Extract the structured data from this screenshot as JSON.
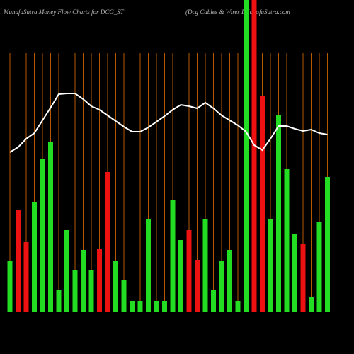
{
  "chart_data": {
    "type": "bar",
    "title": "MunafaSutra  Money Flow  Charts for DCG_ST",
    "subtitle": "(Dcg Cables & Wires Lt",
    "source": "MunafaSutra.com",
    "categories": [
      null,
      null,
      null,
      null,
      null,
      null,
      null,
      null,
      null,
      null,
      null,
      null,
      null,
      null,
      null,
      null,
      null,
      null,
      null,
      null,
      null,
      null,
      null,
      null,
      null,
      null,
      null,
      null,
      null,
      null,
      null,
      null,
      null,
      null,
      null,
      null,
      null,
      null,
      null,
      null
    ],
    "values": [
      72,
      143,
      98,
      155,
      215,
      239,
      30,
      115,
      58,
      87,
      58,
      88,
      197,
      72,
      44,
      15,
      15,
      130,
      15,
      15,
      158,
      101,
      115,
      73,
      130,
      30,
      72,
      87,
      15,
      440,
      440,
      305,
      130,
      278,
      201,
      110,
      96,
      20,
      126,
      190
    ],
    "bar_colors": [
      "#22dd22",
      "#ee1111",
      "#ee1111",
      "#22dd22",
      "#22dd22",
      "#22dd22",
      "#22dd22",
      "#22dd22",
      "#22dd22",
      "#22dd22",
      "#22dd22",
      "#ee1111",
      "#ee1111",
      "#22dd22",
      "#22dd22",
      "#22dd22",
      "#22dd22",
      "#22dd22",
      "#22dd22",
      "#22dd22",
      "#22dd22",
      "#22dd22",
      "#ee1111",
      "#ee1111",
      "#22dd22",
      "#22dd22",
      "#22dd22",
      "#22dd22",
      "#22dd22",
      "#22dd22",
      "#ee1111",
      "#ee1111",
      "#22dd22",
      "#22dd22",
      "#22dd22",
      "#22dd22",
      "#ee1111",
      "#22dd22",
      "#22dd22",
      "#22dd22"
    ],
    "line": {
      "color": "#ffffff",
      "values": [
        225,
        232,
        244,
        252,
        270,
        288,
        307,
        308,
        308,
        300,
        290,
        285,
        277,
        269,
        261,
        254,
        254,
        260,
        268,
        276,
        285,
        292,
        290,
        287,
        295,
        287,
        277,
        270,
        263,
        254,
        235,
        228,
        244,
        262,
        262,
        258,
        255,
        257,
        252,
        250
      ]
    },
    "gridline_color": "#b35900",
    "ylim": [
      0,
      440
    ]
  }
}
